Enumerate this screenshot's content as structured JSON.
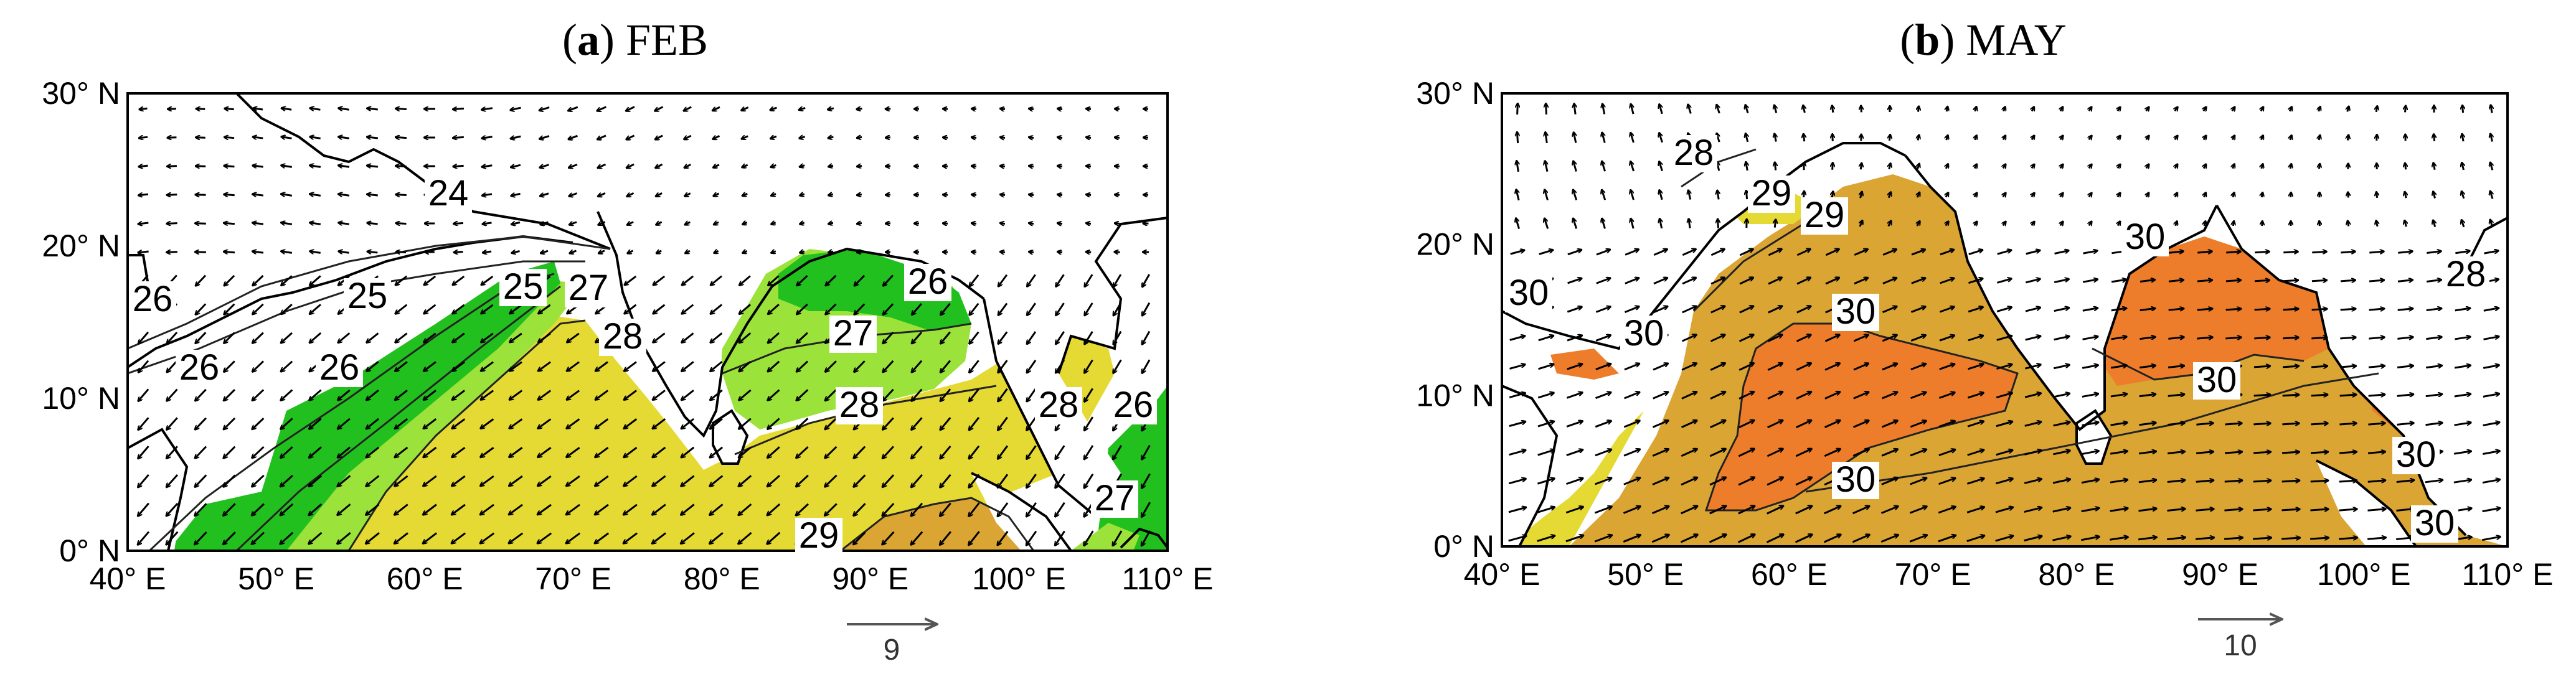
{
  "colors": {
    "lt24": "#ffffff",
    "c26": "#22c01e",
    "c27": "#9be23a",
    "c28": "#e5d933",
    "c29": "#dba534",
    "c30": "#ee7d2b",
    "land": "#ffffff"
  },
  "panels": [
    {
      "id": "a",
      "letter": "a",
      "month": "FEB",
      "ref_vector": "9",
      "contour_labels": [
        "24",
        "25",
        "25",
        "26",
        "26",
        "26",
        "26",
        "27",
        "27",
        "28",
        "28",
        "28",
        "29",
        "26",
        "27"
      ],
      "xticks": [
        "40° E",
        "50° E",
        "60° E",
        "70° E",
        "80° E",
        "90° E",
        "100° E",
        "110° E"
      ],
      "yticks": [
        "30° N",
        "20° N",
        "10° N",
        "0° N"
      ]
    },
    {
      "id": "b",
      "letter": "b",
      "month": "MAY",
      "ref_vector": "10",
      "contour_labels": [
        "28",
        "29",
        "29",
        "30",
        "30",
        "30",
        "30",
        "30",
        "30",
        "30",
        "30",
        "28"
      ],
      "xticks": [
        "40° E",
        "50° E",
        "60° E",
        "70° E",
        "80° E",
        "90° E",
        "100° E",
        "110° E"
      ],
      "yticks": [
        "30° N",
        "20° N",
        "10° N",
        "0° N"
      ]
    }
  ]
}
